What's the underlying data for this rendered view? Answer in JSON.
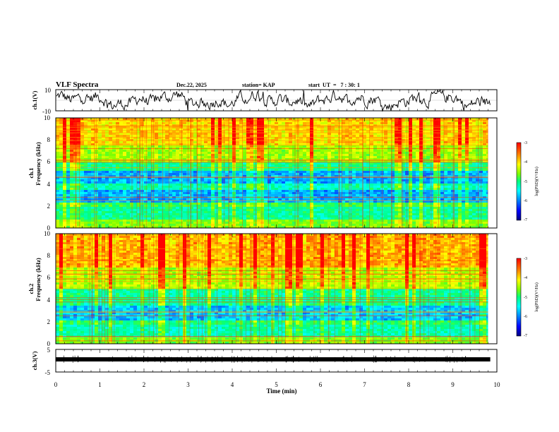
{
  "header": {
    "title": "VLF Spectra",
    "date": "Dec.22, 2025",
    "station": "station= KAP",
    "start_time": "start  UT  =   7 : 30: 1"
  },
  "colors": {
    "spectrum_stops": [
      "#000080",
      "#0000ff",
      "#0080ff",
      "#00ffff",
      "#00ff80",
      "#80ff00",
      "#ffff00",
      "#ff8000",
      "#ff0000"
    ]
  },
  "chart_data": [
    {
      "id": "ch1-waveform",
      "type": "line",
      "ylabel": "ch.1(V)",
      "yticks": [
        "10",
        "-10"
      ],
      "ylim": [
        -10,
        10
      ],
      "xlim": [
        0,
        10
      ],
      "style": "noisy"
    },
    {
      "id": "ch1-spectrogram",
      "type": "heatmap",
      "ylabel_top": "ch.1",
      "ylabel": "Frequency  (kHz)",
      "yticks": [
        "0",
        "2",
        "4",
        "6",
        "8",
        "10"
      ],
      "ylim": [
        0,
        10
      ],
      "xlim": [
        0,
        10
      ],
      "data_end_min": 9.8,
      "colorbar": {
        "label": "log(PSD)(V²/Hz)",
        "ticks": [
          "-3",
          "-4",
          "-5",
          "-6",
          "-7"
        ],
        "range": [
          -7,
          -3
        ]
      },
      "bands": [
        {
          "from_khz": 0.0,
          "to_khz": 0.8,
          "level": 0.62
        },
        {
          "from_khz": 0.8,
          "to_khz": 2.0,
          "level": 0.48
        },
        {
          "from_khz": 2.0,
          "to_khz": 2.4,
          "level": 0.55
        },
        {
          "from_khz": 2.4,
          "to_khz": 3.4,
          "level": 0.3
        },
        {
          "from_khz": 3.4,
          "to_khz": 4.0,
          "level": 0.45
        },
        {
          "from_khz": 4.0,
          "to_khz": 5.2,
          "level": 0.3
        },
        {
          "from_khz": 5.2,
          "to_khz": 6.0,
          "level": 0.5
        },
        {
          "from_khz": 6.0,
          "to_khz": 7.5,
          "level": 0.66
        },
        {
          "from_khz": 7.5,
          "to_khz": 10.0,
          "level": 0.78
        }
      ]
    },
    {
      "id": "ch2-spectrogram",
      "type": "heatmap",
      "ylabel_top": "ch.2",
      "ylabel": "Frequency  (kHz)",
      "yticks": [
        "0",
        "2",
        "4",
        "6",
        "8",
        "10"
      ],
      "ylim": [
        0,
        10
      ],
      "xlim": [
        0,
        10
      ],
      "data_end_min": 9.8,
      "colorbar": {
        "label": "log(PSD)(V²/Hz)",
        "ticks": [
          "-3",
          "-4",
          "-5",
          "-6",
          "-7"
        ],
        "range": [
          -7,
          -3
        ]
      },
      "bands": [
        {
          "from_khz": 0.0,
          "to_khz": 0.6,
          "level": 0.62
        },
        {
          "from_khz": 0.6,
          "to_khz": 1.8,
          "level": 0.45
        },
        {
          "from_khz": 1.8,
          "to_khz": 2.2,
          "level": 0.52
        },
        {
          "from_khz": 2.2,
          "to_khz": 3.4,
          "level": 0.32
        },
        {
          "from_khz": 3.4,
          "to_khz": 5.0,
          "level": 0.48
        },
        {
          "from_khz": 5.0,
          "to_khz": 7.0,
          "level": 0.68
        },
        {
          "from_khz": 7.0,
          "to_khz": 10.0,
          "level": 0.82
        }
      ]
    },
    {
      "id": "ch3-waveform",
      "type": "line",
      "ylabel": "ch.3(V)",
      "yticks": [
        "5",
        "-5"
      ],
      "ylim": [
        -5,
        5
      ],
      "xlim": [
        0,
        10
      ],
      "style": "flat",
      "baseline_v": 0.6,
      "xlabel": "Time  (min)",
      "xticks": [
        "0",
        "1",
        "2",
        "3",
        "4",
        "5",
        "6",
        "7",
        "8",
        "9",
        "10"
      ]
    }
  ]
}
